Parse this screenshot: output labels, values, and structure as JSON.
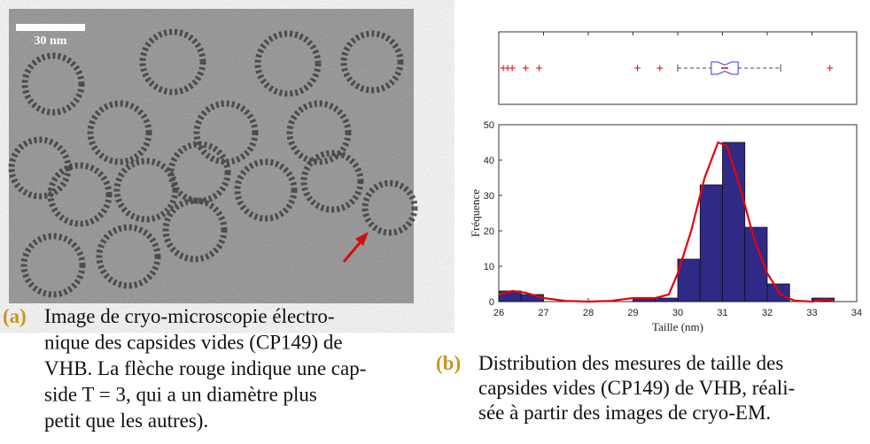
{
  "figure_a": {
    "scale_bar": "30 nm",
    "label": "(a)",
    "caption_lines": [
      "Image de cryo-microscopie électro-",
      "nique des capsides vides (CP149) de",
      "VHB. La flèche rouge indique une cap-",
      "side T = 3, qui a un diamètre plus",
      "petit que les autres)."
    ]
  },
  "chart_data": {
    "type": "histogram",
    "bins": [
      26,
      26.5,
      27,
      27.5,
      28,
      28.5,
      29,
      29.5,
      30,
      30.5,
      31,
      31.5,
      32,
      32.5,
      33,
      33.5
    ],
    "values": [
      3,
      2,
      0,
      0,
      0,
      0,
      1,
      1,
      12,
      33,
      45,
      21,
      5,
      0,
      1
    ],
    "color": "#2e2a86",
    "xlim": [
      26,
      34
    ],
    "xticks": [
      26,
      27,
      28,
      29,
      30,
      31,
      32,
      33,
      34
    ],
    "ylim": [
      0,
      50
    ],
    "yticks": [
      0,
      10,
      20,
      30,
      40,
      50
    ],
    "xlabel": "Taille (nm)",
    "ylabel": "Fréquence",
    "fit": {
      "color": "#e8000b",
      "x": [
        26,
        26.3,
        26.6,
        27,
        27.5,
        28,
        28.5,
        29,
        29.5,
        29.8,
        30,
        30.3,
        30.6,
        30.9,
        31.1,
        31.4,
        31.7,
        32,
        32.3,
        32.6,
        33,
        33.3,
        33.5
      ],
      "values": [
        2,
        3,
        2.5,
        1,
        0.2,
        0,
        0.2,
        1,
        1,
        2,
        8,
        20,
        35,
        45,
        44,
        32,
        18,
        8,
        2,
        0.3,
        0,
        0.6,
        0.3
      ]
    },
    "boxplot": {
      "whisker_low": 30.0,
      "q1": 30.75,
      "median": 31.05,
      "q3": 31.35,
      "whisker_high": 32.3,
      "outliers": [
        26.1,
        26.2,
        26.3,
        26.6,
        26.9,
        29.1,
        29.6,
        33.4
      ],
      "color": "#3a3ad8",
      "outlier_color": "#e8000b"
    },
    "label": "(b)",
    "caption_lines": [
      "Distribution des mesures de taille des",
      "capsides vides (CP149) de VHB, réali-",
      "sée à partir des images de cryo-EM."
    ]
  }
}
